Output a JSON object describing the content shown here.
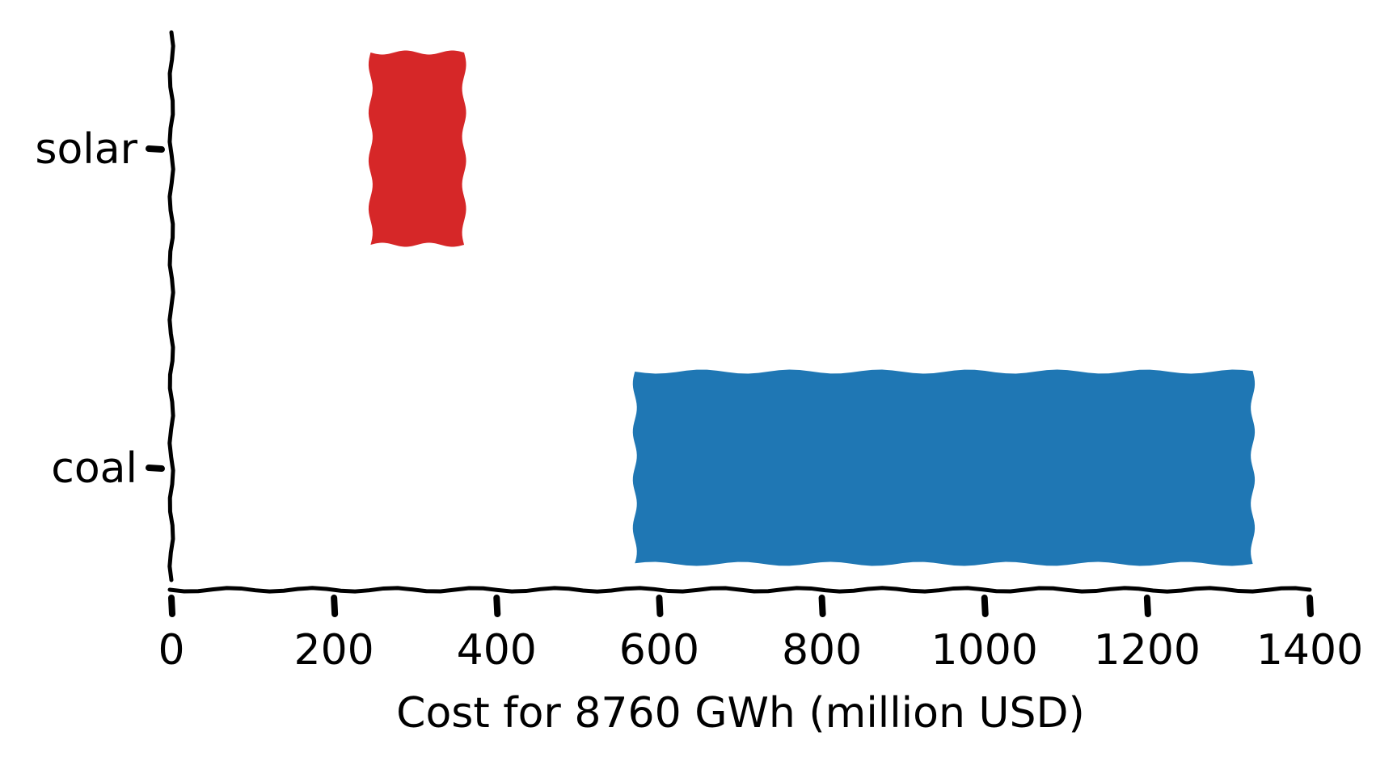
{
  "chart_data": {
    "type": "bar",
    "orientation": "horizontal",
    "title": "",
    "xlabel": "Cost for 8760 GWh (million USD)",
    "ylabel": "",
    "xlim": [
      0,
      1400
    ],
    "xticks": [
      "0",
      "200",
      "400",
      "600",
      "800",
      "1000",
      "1200",
      "1400"
    ],
    "grid": false,
    "categories": [
      "solar",
      "coal"
    ],
    "bars": [
      {
        "category": "solar",
        "start": 245,
        "end": 360,
        "color": "#d62728"
      },
      {
        "category": "coal",
        "start": 570,
        "end": 1330,
        "color": "#1f77b4"
      }
    ]
  }
}
